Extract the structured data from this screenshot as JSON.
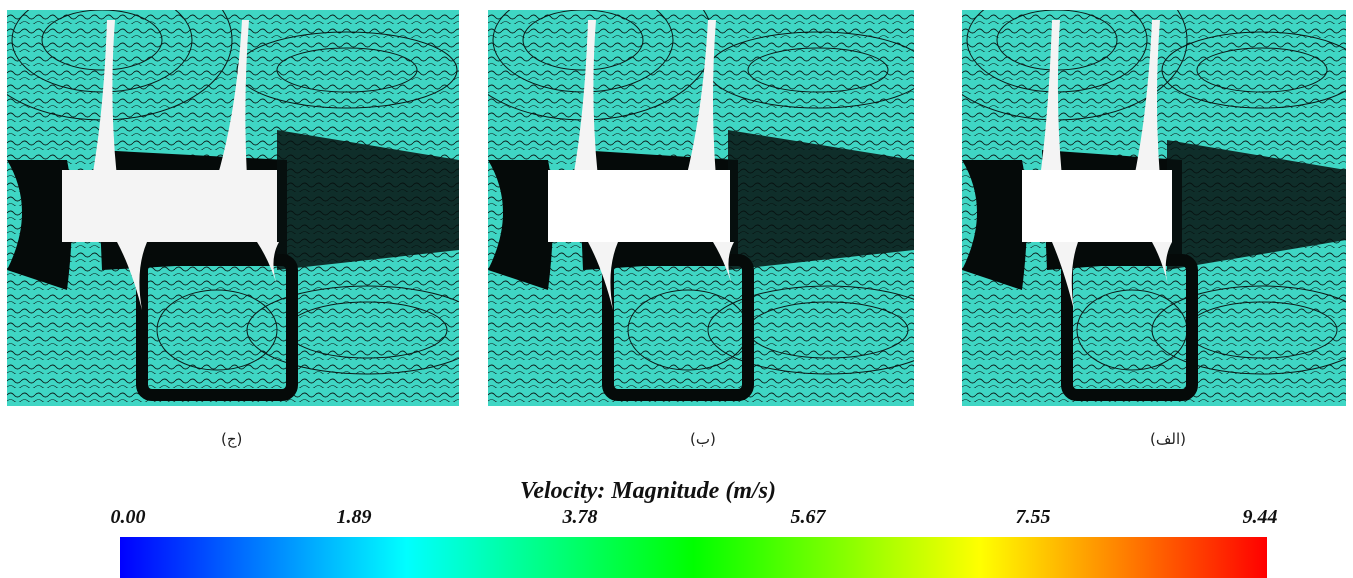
{
  "panels": [
    {
      "id": "panel-j",
      "caption": "(ج)"
    },
    {
      "id": "panel-b",
      "caption": "(ب)"
    },
    {
      "id": "panel-alef",
      "caption": "(الف)"
    }
  ],
  "legend": {
    "title": "Velocity: Magnitude (m/s)",
    "ticks": [
      "0.00",
      "1.89",
      "3.78",
      "5.67",
      "7.55",
      "9.44"
    ],
    "colors": [
      "#0000ff",
      "#00ffff",
      "#00ff00",
      "#ffff00",
      "#ff0000"
    ]
  },
  "colors": {
    "field": "#3fd6c4",
    "contour_lines": "#0b1a18",
    "body": "#f4f4f4"
  }
}
